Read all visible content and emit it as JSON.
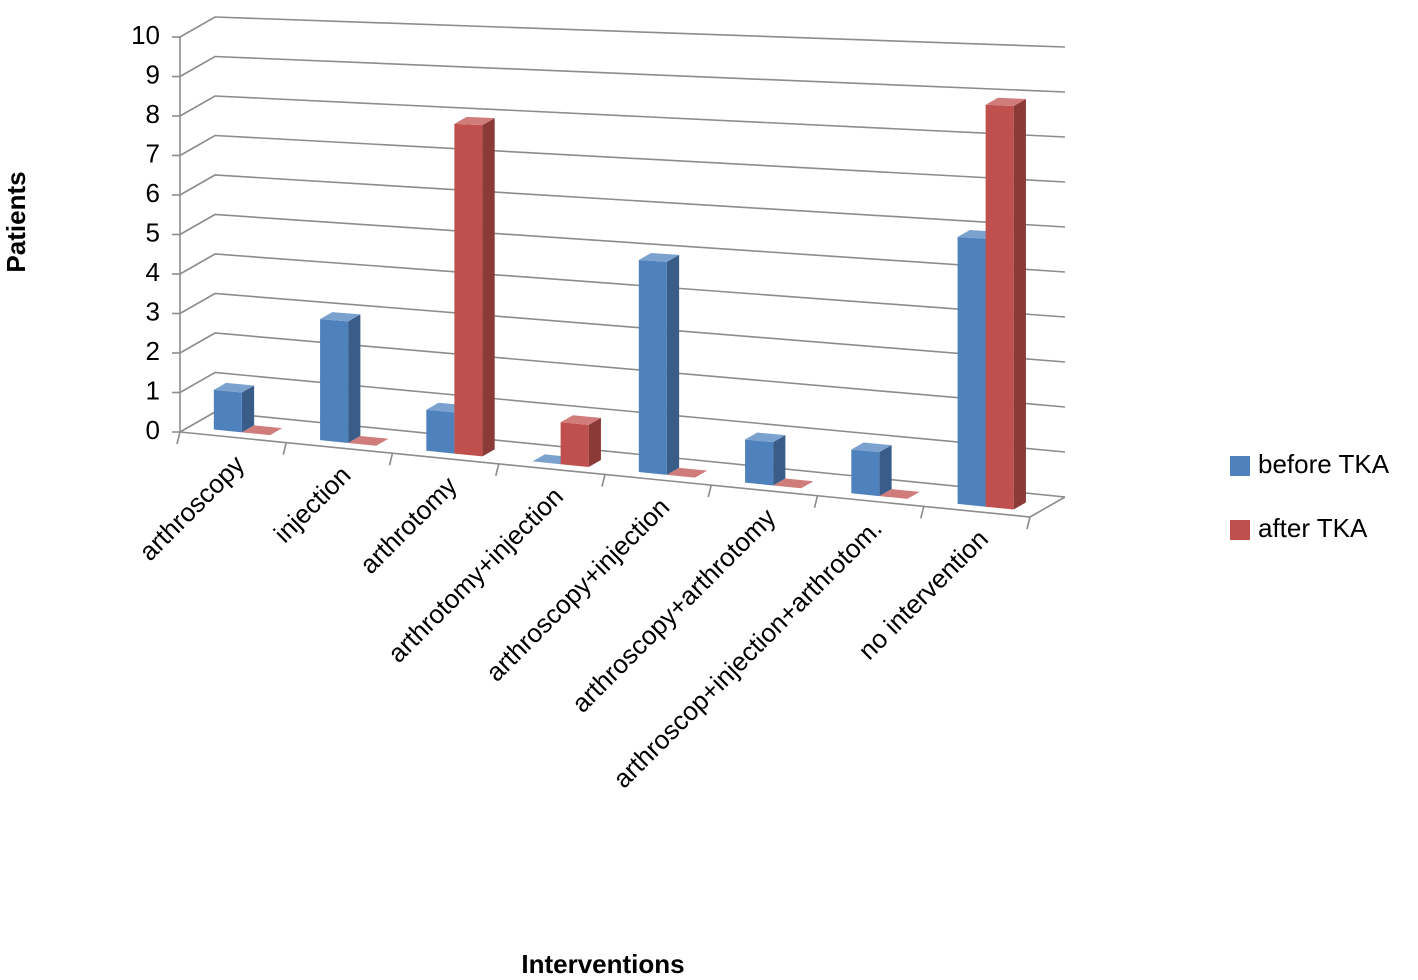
{
  "chart_data": {
    "type": "bar3d",
    "y_label": "Patients",
    "x_label": "Interventions",
    "categories": [
      "arthroscopy",
      "injection",
      "arthrotomy",
      "arthrotomy+injection",
      "arthroscopy+injection",
      "arthroscopy+arthrotomy",
      "arthroscop+injection+arthrotom.",
      "no intervention"
    ],
    "series": [
      {
        "name": "before TKA",
        "color": "#4f81bd",
        "values": [
          1,
          3,
          1,
          0,
          5,
          1,
          1,
          6
        ]
      },
      {
        "name": "after TKA",
        "color": "#c0504d",
        "values": [
          0,
          0,
          8,
          1,
          0,
          0,
          0,
          9
        ]
      }
    ],
    "ylim": [
      0,
      10
    ],
    "yticks": [
      0,
      1,
      2,
      3,
      4,
      5,
      6,
      7,
      8,
      9,
      10
    ],
    "grid": true,
    "legend": "right"
  }
}
